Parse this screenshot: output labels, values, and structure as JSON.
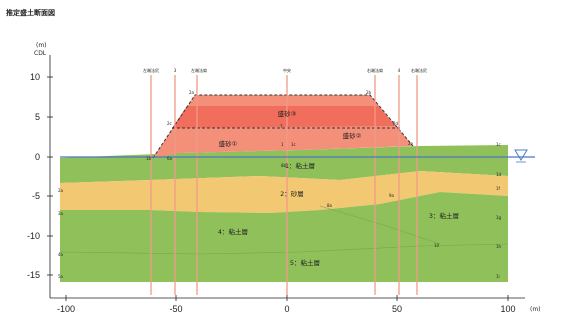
{
  "title": "推定盛土断面図",
  "y_axis": {
    "unit": "(m)",
    "datum": "CDL",
    "ticks": [
      "10",
      "5",
      "0",
      "-5",
      "-10",
      "-15"
    ]
  },
  "x_axis": {
    "unit": "(m)",
    "ticks": [
      "-100",
      "-50",
      "0",
      "50",
      "100"
    ]
  },
  "column_labels": [
    "左端法尻",
    "3",
    "左端法肩",
    "中央",
    "右端法肩",
    "4",
    "右端法尻"
  ],
  "layers": {
    "fill_3": "盛砂③",
    "fill_1": "盛砂①",
    "fill_2": "盛砂②",
    "clay_1": "1：粘土層",
    "sand_2": "2：砂層",
    "clay_3": "3：粘土層",
    "clay_4": "4：粘土層",
    "clay_5": "5：粘土層"
  },
  "point_labels": [
    "2a",
    "2b",
    "2c",
    "1b",
    "6a",
    "2d",
    "7",
    "1",
    "1c",
    "8b",
    "2e",
    "1c",
    "1d",
    "2a",
    "3a",
    "4a",
    "5a",
    "8a",
    "9a",
    "10",
    "1f",
    "1g",
    "1h",
    "1i"
  ],
  "colors": {
    "fill": "#f4907a",
    "fill_upper": "#f26e5c",
    "clay": "#8fc05a",
    "sand": "#f2c872",
    "water": "#4b78c8",
    "borehole": "#f29a8a"
  }
}
